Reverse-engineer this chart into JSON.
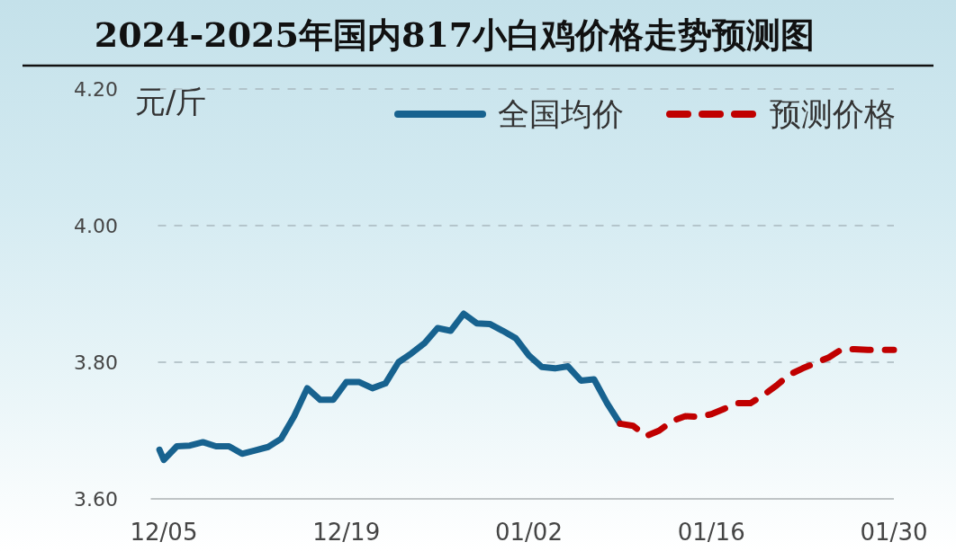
{
  "chart_data": {
    "type": "line",
    "title": "2024-2025年国内817小白鸡价格走势预测图",
    "ylabel": "元/斤",
    "xlim": [
      "2024-12-04",
      "2025-01-30"
    ],
    "xticks": [
      {
        "value": "2024-12-05",
        "label": "12/05"
      },
      {
        "value": "2024-12-19",
        "label": "12/19"
      },
      {
        "value": "2025-01-02",
        "label": "01/02"
      },
      {
        "value": "2025-01-16",
        "label": "01/16"
      },
      {
        "value": "2025-01-30",
        "label": "01/30"
      }
    ],
    "ylim": [
      3.6,
      4.2
    ],
    "yticks": [
      {
        "value": 3.6,
        "label": "3.60"
      },
      {
        "value": 3.8,
        "label": "3.80"
      },
      {
        "value": 4.0,
        "label": "4.00"
      },
      {
        "value": 4.2,
        "label": "4.20"
      }
    ],
    "grid": "y",
    "legend": "top right",
    "series": [
      {
        "name": "全国均价",
        "color": "#17628f",
        "line_style": "solid",
        "x": [
          "2024-12-04T16:00",
          "2024-12-05",
          "2024-12-06",
          "2024-12-07",
          "2024-12-08",
          "2024-12-09",
          "2024-12-10",
          "2024-12-11",
          "2024-12-12",
          "2024-12-13",
          "2024-12-14",
          "2024-12-15",
          "2024-12-16",
          "2024-12-17",
          "2024-12-18",
          "2024-12-19",
          "2024-12-20",
          "2024-12-21",
          "2024-12-22",
          "2024-12-23",
          "2024-12-24",
          "2024-12-25",
          "2024-12-26",
          "2024-12-27",
          "2024-12-28",
          "2024-12-29",
          "2024-12-30",
          "2024-12-31",
          "2025-01-01",
          "2025-01-02",
          "2025-01-03",
          "2025-01-04",
          "2025-01-05",
          "2025-01-06",
          "2025-01-07",
          "2025-01-08",
          "2025-01-09"
        ],
        "values": [
          3.672,
          3.657,
          3.677,
          3.678,
          3.683,
          3.677,
          3.677,
          3.666,
          3.671,
          3.676,
          3.688,
          3.721,
          3.762,
          3.745,
          3.745,
          3.771,
          3.771,
          3.762,
          3.769,
          3.8,
          3.813,
          3.828,
          3.85,
          3.846,
          3.871,
          3.857,
          3.856,
          3.846,
          3.835,
          3.81,
          3.793,
          3.791,
          3.794,
          3.773,
          3.775,
          3.74,
          3.71
        ]
      },
      {
        "name": "预测价格",
        "color": "#c00000",
        "line_style": "dashed",
        "x": [
          "2025-01-09",
          "2025-01-10",
          "2025-01-11",
          "2025-01-12",
          "2025-01-13",
          "2025-01-14",
          "2025-01-15",
          "2025-01-16",
          "2025-01-17",
          "2025-01-18",
          "2025-01-19",
          "2025-01-20",
          "2025-01-21",
          "2025-01-22",
          "2025-01-23",
          "2025-01-24",
          "2025-01-25",
          "2025-01-26",
          "2025-01-27",
          "2025-01-28",
          "2025-01-29",
          "2025-01-30"
        ],
        "values": [
          3.71,
          3.707,
          3.692,
          3.7,
          3.714,
          3.721,
          3.72,
          3.724,
          3.732,
          3.74,
          3.74,
          3.752,
          3.766,
          3.782,
          3.791,
          3.799,
          3.807,
          3.819,
          3.819,
          3.818,
          3.818,
          3.818
        ]
      }
    ]
  }
}
